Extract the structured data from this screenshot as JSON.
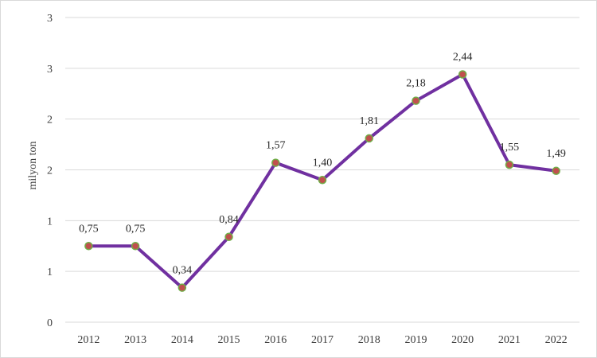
{
  "chart_data": {
    "type": "line",
    "title": "",
    "xlabel": "",
    "ylabel": "milyon ton",
    "categories": [
      "2012",
      "2013",
      "2014",
      "2015",
      "2016",
      "2017",
      "2018",
      "2019",
      "2020",
      "2021",
      "2022"
    ],
    "series": [
      {
        "values": [
          0.75,
          0.75,
          0.34,
          0.84,
          1.57,
          1.4,
          1.81,
          2.18,
          2.44,
          1.55,
          1.49
        ],
        "labels": [
          "0,75",
          "0,75",
          "0,34",
          "0,84",
          "1,57",
          "1,40",
          "1,81",
          "2,18",
          "2,44",
          "1,55",
          "1,49"
        ],
        "line_color": "#7030a0",
        "marker_color": "#c0504d",
        "marker_edge_color": "#70ad47"
      }
    ],
    "ylim": [
      0,
      3
    ],
    "yticks": [
      0,
      0.5,
      1,
      1.5,
      2,
      2.5,
      3
    ],
    "ytick_labels": [
      "0",
      "1",
      "1",
      "2",
      "2",
      "3",
      "3"
    ],
    "grid": true,
    "legend": "none",
    "gridline_color": "#d9d9d9"
  }
}
